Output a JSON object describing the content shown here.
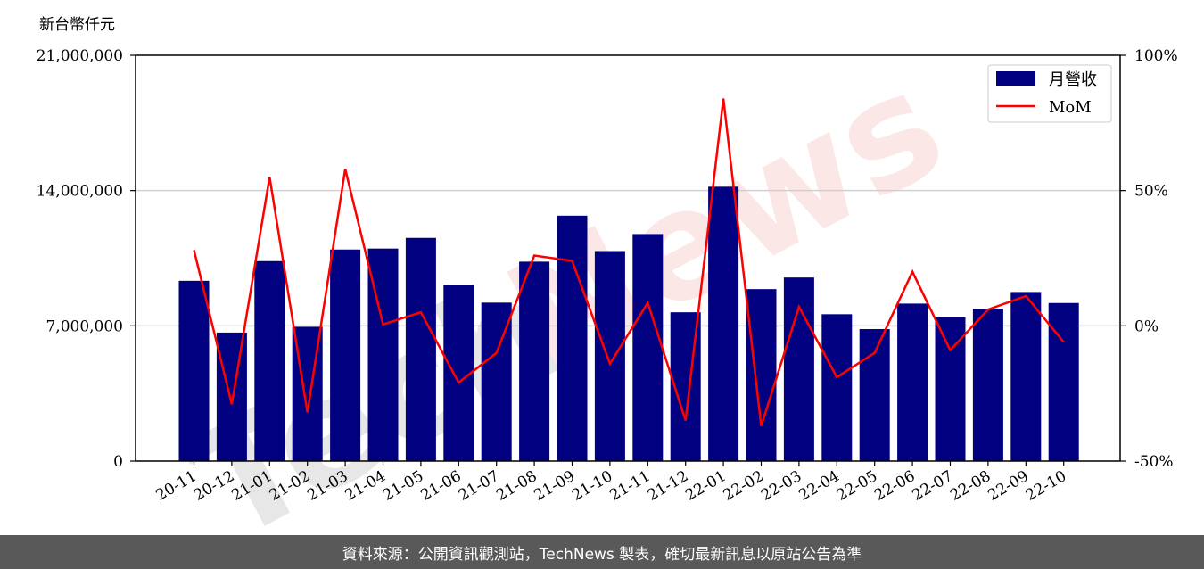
{
  "watermark": {
    "part1": "Tech",
    "part2": "News"
  },
  "footer": {
    "text": "資料來源：公開資訊觀測站，TechNews 製表，確切最新訊息以原站公告為準"
  },
  "chart_data": {
    "type": "bar",
    "title": "",
    "unit_label": "新台幣仟元",
    "categories": [
      "20-11",
      "20-12",
      "21-01",
      "21-02",
      "21-03",
      "21-04",
      "21-05",
      "21-06",
      "21-07",
      "21-08",
      "21-09",
      "21-10",
      "21-11",
      "21-12",
      "22-01",
      "22-02",
      "22-03",
      "22-04",
      "22-05",
      "22-06",
      "22-07",
      "22-08",
      "22-09",
      "22-10"
    ],
    "series": [
      {
        "name": "月營收",
        "type": "bar",
        "axis": "left",
        "color": "#000080",
        "values": [
          9330000,
          6650000,
          10350000,
          6950000,
          10950000,
          11000000,
          11550000,
          9120000,
          8200000,
          10320000,
          12700000,
          10870000,
          11750000,
          7700000,
          14200000,
          8900000,
          9500000,
          7600000,
          6830000,
          8150000,
          7430000,
          7880000,
          8750000,
          8180000
        ]
      },
      {
        "name": "MoM",
        "type": "line",
        "axis": "right",
        "color": "#ff0000",
        "values": [
          28,
          -29,
          55,
          -32,
          58,
          0.5,
          5,
          -21,
          -10,
          26,
          24,
          -14,
          8.5,
          -35,
          84,
          -37,
          7,
          -19,
          -10,
          20,
          -9,
          6,
          11,
          -6
        ]
      }
    ],
    "y_left": {
      "range": [
        0,
        21000000
      ],
      "ticks": [
        0,
        7000000,
        14000000,
        21000000
      ],
      "tick_labels": [
        "0",
        "7,000,000",
        "14,000,000",
        "21,000,000"
      ]
    },
    "y_right": {
      "range": [
        -50,
        100
      ],
      "ticks": [
        -50,
        0,
        50,
        100
      ],
      "tick_labels": [
        "-50%",
        "0%",
        "50%",
        "100%"
      ]
    },
    "grid": "horizontal",
    "legend": "top-right",
    "legend_entries": [
      "月營收",
      "MoM"
    ]
  }
}
